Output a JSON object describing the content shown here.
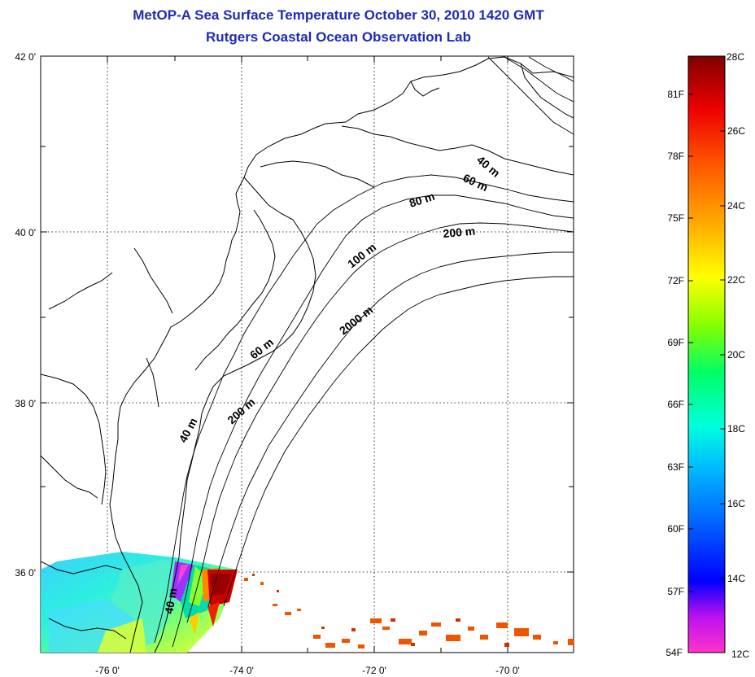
{
  "title": {
    "line1": "MetOP-A Sea Surface Temperature October 30, 2010 1420 GMT",
    "line2": "Rutgers Coastal Ocean Observation Lab"
  },
  "map": {
    "lat_labels": [
      "42 0'",
      "40 0'",
      "38 0'",
      "36 0'"
    ],
    "lon_labels": [
      "-76 0'",
      "-74 0'",
      "-72 0'",
      "-70 0'"
    ],
    "depth_contour_labels": [
      "40 m",
      "60 m",
      "80 m",
      "200 m",
      "100 m",
      "2000 m",
      "60 m",
      "200 m",
      "40 m",
      "40 m"
    ],
    "extent": {
      "lon_min": -77,
      "lon_max": -69,
      "lat_min": 35,
      "lat_max": 42
    }
  },
  "colorbar": {
    "fahrenheit_labels": [
      "81F",
      "78F",
      "75F",
      "72F",
      "69F",
      "66F",
      "63F",
      "60F",
      "57F",
      "54F"
    ],
    "celsius_labels": [
      "28C",
      "26C",
      "24C",
      "22C",
      "20C",
      "18C",
      "16C",
      "14C",
      "12C"
    ],
    "range_c": [
      12,
      28
    ],
    "colors": [
      "#ff33cc",
      "#8800ff",
      "#0000ff",
      "#0066ff",
      "#00ccff",
      "#00ffcc",
      "#00ff44",
      "#aaff00",
      "#ffff00",
      "#ffaa00",
      "#ff6600",
      "#ff1100",
      "#b30000",
      "#800000"
    ]
  }
}
